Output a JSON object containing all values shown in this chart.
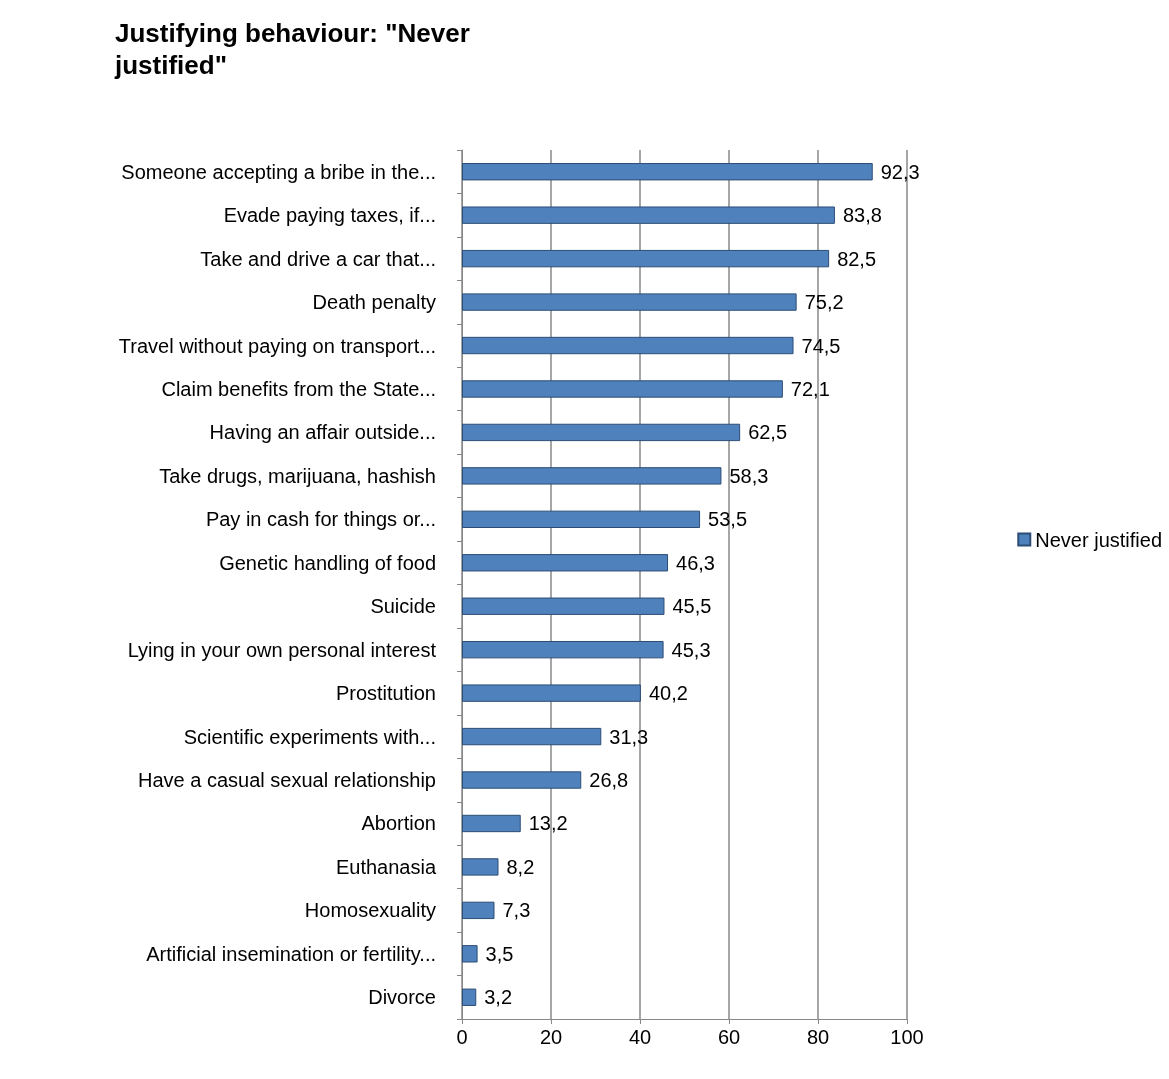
{
  "chart_data": {
    "type": "bar",
    "orientation": "horizontal",
    "title": "Justifying behaviour: \"Never justified\"",
    "categories": [
      "Someone accepting a bribe in the...",
      "Evade paying taxes, if...",
      "Take and drive a car that...",
      "Death penalty",
      "Travel without paying on transport...",
      "Claim benefits from the State...",
      "Having an affair outside...",
      "Take drugs, marijuana, hashish",
      "Pay in cash for things or...",
      "Genetic handling of food",
      "Suicide",
      "Lying in your own personal interest",
      "Prostitution",
      "Scientific experiments with...",
      "Have a casual sexual relationship",
      "Abortion",
      "Euthanasia",
      "Homosexuality",
      "Artificial insemination or fertility...",
      "Divorce"
    ],
    "series": [
      {
        "name": "Never justified",
        "color": "#4f81bd",
        "values": [
          92.3,
          83.8,
          82.5,
          75.2,
          74.5,
          72.1,
          62.5,
          58.3,
          53.5,
          46.3,
          45.5,
          45.3,
          40.2,
          31.3,
          26.8,
          13.2,
          8.2,
          7.3,
          3.5,
          3.2
        ],
        "value_labels": [
          "92,3",
          "83,8",
          "82,5",
          "75,2",
          "74,5",
          "72,1",
          "62,5",
          "58,3",
          "53,5",
          "46,3",
          "45,5",
          "45,3",
          "40,2",
          "31,3",
          "26,8",
          "13,2",
          "8,2",
          "7,3",
          "3,5",
          "3,2"
        ]
      }
    ],
    "xlim": [
      0,
      100
    ],
    "xticks": [
      0,
      20,
      40,
      60,
      80,
      100
    ],
    "grid": "x",
    "legend": "right"
  }
}
